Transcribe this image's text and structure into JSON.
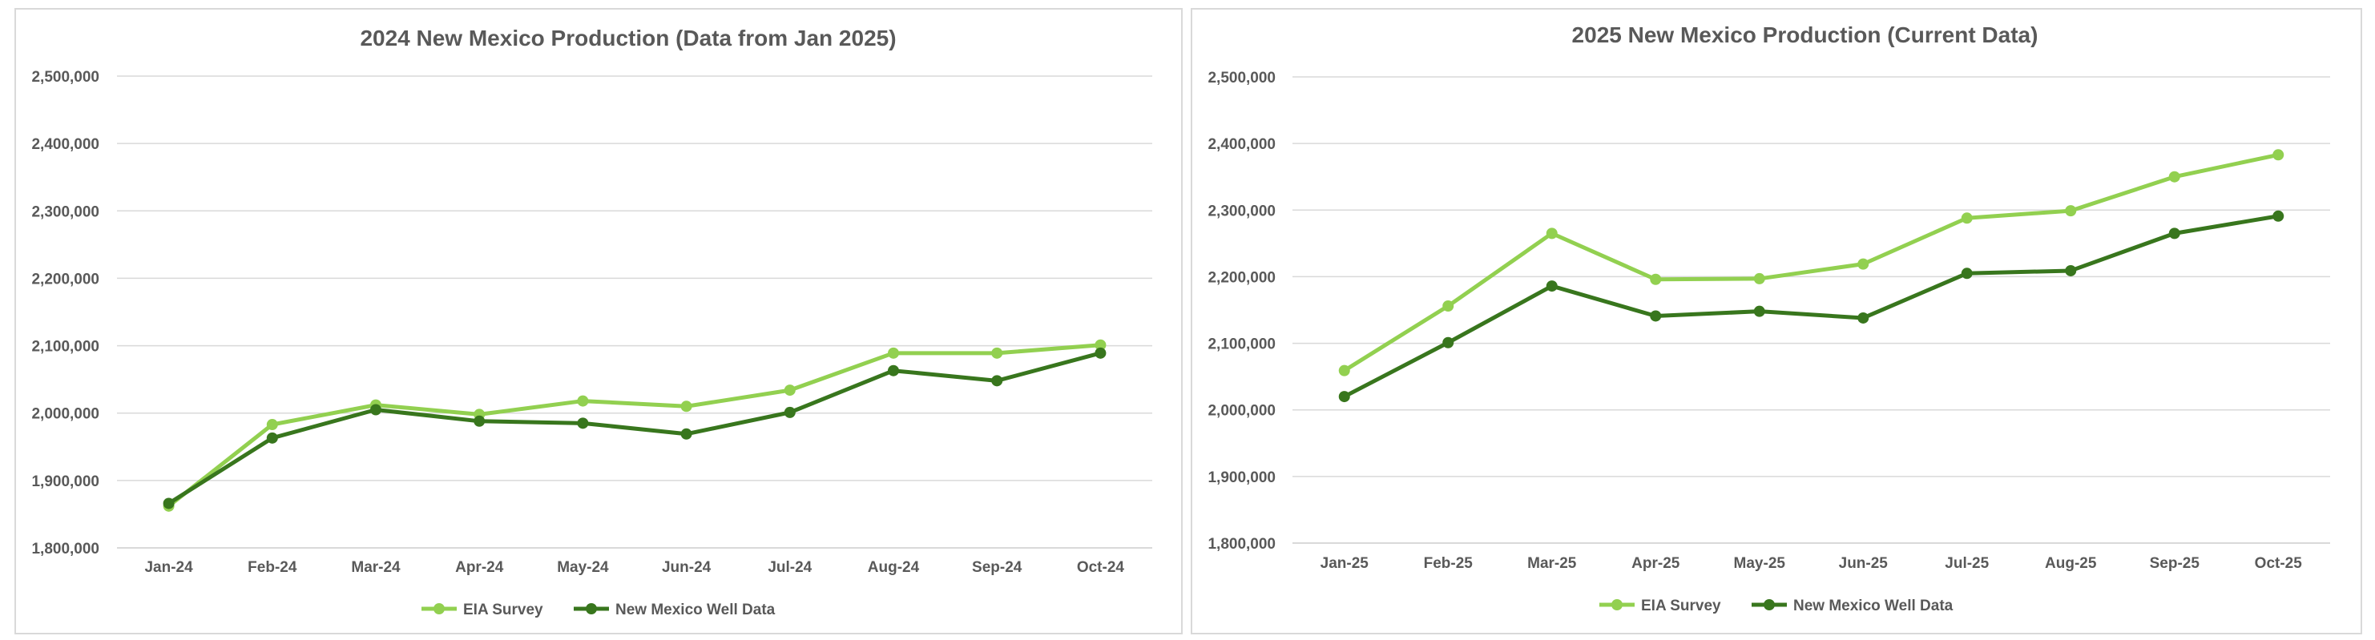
{
  "colors": {
    "eia": "#92d050",
    "well": "#38761d",
    "grid": "#d9d9d9",
    "text": "#595959"
  },
  "chart_data": [
    {
      "type": "line",
      "title": "2024 New Mexico Production (Data from Jan 2025)",
      "categories": [
        "Jan-24",
        "Feb-24",
        "Mar-24",
        "Apr-24",
        "May-24",
        "Jun-24",
        "Jul-24",
        "Aug-24",
        "Sep-24",
        "Oct-24"
      ],
      "series": [
        {
          "name": "EIA Survey",
          "values": [
            1862000,
            1983000,
            2012000,
            1998000,
            2018000,
            2010000,
            2034000,
            2089000,
            2089000,
            2101000
          ]
        },
        {
          "name": "New Mexico Well Data",
          "values": [
            1866000,
            1963000,
            2005000,
            1988000,
            1985000,
            1969000,
            2001000,
            2063000,
            2048000,
            2089000
          ]
        }
      ],
      "y_ticks": [
        "1,800,000",
        "1,900,000",
        "2,000,000",
        "2,100,000",
        "2,200,000",
        "2,300,000",
        "2,400,000",
        "2,500,000"
      ],
      "ylim": [
        1800000,
        2500000
      ],
      "grid": true,
      "legend": "bottom"
    },
    {
      "type": "line",
      "title": "2025 New Mexico Production (Current Data)",
      "categories": [
        "Jan-25",
        "Feb-25",
        "Mar-25",
        "Apr-25",
        "May-25",
        "Jun-25",
        "Jul-25",
        "Aug-25",
        "Sep-25",
        "Oct-25"
      ],
      "series": [
        {
          "name": "EIA Survey",
          "values": [
            2059000,
            2156000,
            2265000,
            2196000,
            2197000,
            2219000,
            2288000,
            2299000,
            2350000,
            2383000
          ]
        },
        {
          "name": "New Mexico Well Data",
          "values": [
            2020000,
            2101000,
            2186000,
            2141000,
            2148000,
            2138000,
            2205000,
            2209000,
            2265000,
            2291000
          ]
        }
      ],
      "y_ticks": [
        "1,800,000",
        "1,900,000",
        "2,000,000",
        "2,100,000",
        "2,200,000",
        "2,300,000",
        "2,400,000",
        "2,500,000"
      ],
      "ylim": [
        1800000,
        2500000
      ],
      "grid": true,
      "legend": "bottom"
    }
  ]
}
